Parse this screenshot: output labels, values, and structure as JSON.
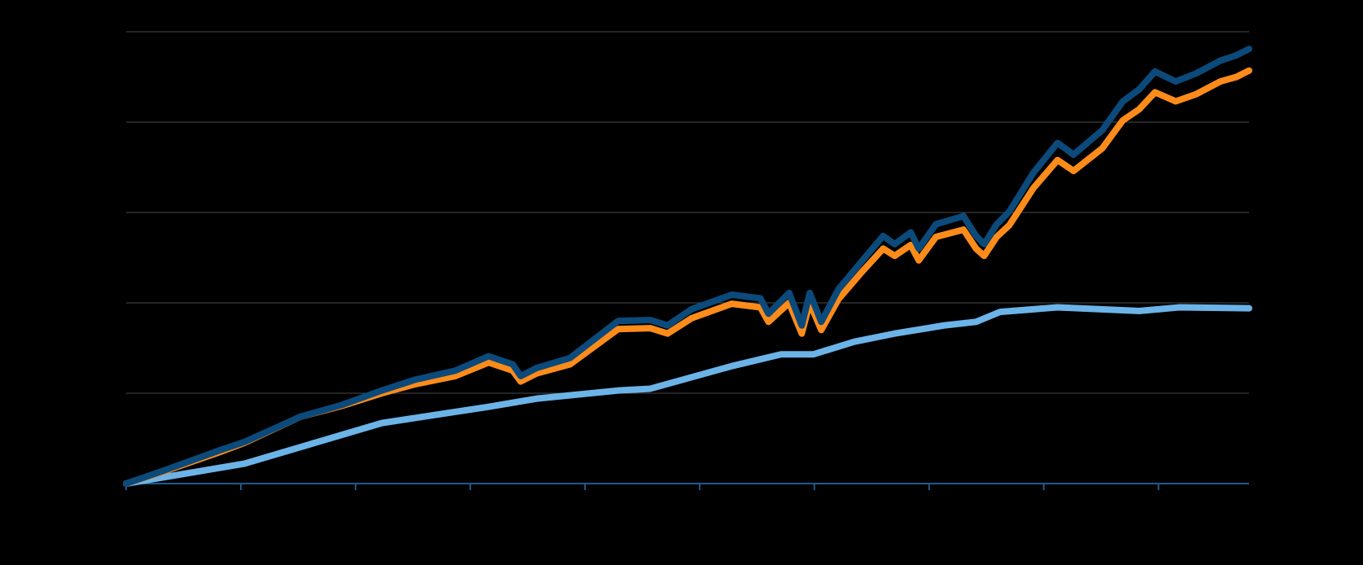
{
  "chart_data": {
    "type": "line",
    "xlim": [
      0,
      9.79
    ],
    "xticks": [
      0,
      1,
      2,
      3,
      4,
      5,
      6,
      7,
      8,
      9
    ],
    "ylim": [
      0,
      5
    ],
    "yticks": [
      0,
      1,
      2,
      3,
      4,
      5
    ],
    "grid": true,
    "series": [
      {
        "color": "#6cb3e8",
        "x": [
          0,
          1.03,
          2.23,
          3.16,
          3.58,
          4.29,
          4.57,
          5.28,
          5.71,
          5.99,
          6.35,
          6.7,
          7.13,
          7.41,
          7.62,
          8.12,
          8.83,
          9.18,
          9.79
        ],
        "values": [
          0,
          0.22,
          0.67,
          0.85,
          0.94,
          1.03,
          1.05,
          1.3,
          1.43,
          1.43,
          1.57,
          1.66,
          1.75,
          1.79,
          1.9,
          1.95,
          1.91,
          1.95,
          1.94
        ]
      },
      {
        "color": "#ff8c1a",
        "x": [
          0,
          0.32,
          0.82,
          1.03,
          1.52,
          1.88,
          2.23,
          2.52,
          2.87,
          3.16,
          3.37,
          3.44,
          3.58,
          3.87,
          4.29,
          4.57,
          4.72,
          4.93,
          5.28,
          5.53,
          5.6,
          5.78,
          5.89,
          5.96,
          6.06,
          6.21,
          6.42,
          6.6,
          6.7,
          6.84,
          6.91,
          7.06,
          7.3,
          7.41,
          7.48,
          7.59,
          7.7,
          7.91,
          8.12,
          8.26,
          8.51,
          8.69,
          8.83,
          8.97,
          9.15,
          9.33,
          9.54,
          9.68,
          9.79
        ],
        "values": [
          0,
          0.13,
          0.35,
          0.45,
          0.74,
          0.86,
          1.0,
          1.1,
          1.19,
          1.34,
          1.25,
          1.13,
          1.22,
          1.32,
          1.71,
          1.72,
          1.66,
          1.83,
          1.99,
          1.95,
          1.79,
          2.0,
          1.66,
          2.0,
          1.7,
          2.04,
          2.35,
          2.6,
          2.52,
          2.64,
          2.47,
          2.73,
          2.81,
          2.6,
          2.52,
          2.73,
          2.86,
          3.27,
          3.58,
          3.46,
          3.71,
          4.02,
          4.14,
          4.33,
          4.23,
          4.31,
          4.45,
          4.5,
          4.57
        ]
      },
      {
        "color": "#0b4a7a",
        "x": [
          0,
          0.32,
          0.82,
          1.03,
          1.52,
          1.88,
          2.23,
          2.52,
          2.87,
          3.16,
          3.37,
          3.44,
          3.58,
          3.87,
          4.29,
          4.57,
          4.72,
          4.93,
          5.28,
          5.53,
          5.6,
          5.78,
          5.89,
          5.96,
          6.06,
          6.21,
          6.42,
          6.6,
          6.7,
          6.84,
          6.91,
          7.06,
          7.3,
          7.41,
          7.48,
          7.59,
          7.7,
          7.91,
          8.12,
          8.26,
          8.51,
          8.69,
          8.83,
          8.97,
          9.15,
          9.33,
          9.54,
          9.68,
          9.79
        ],
        "values": [
          0,
          0.14,
          0.37,
          0.46,
          0.74,
          0.87,
          1.03,
          1.15,
          1.25,
          1.41,
          1.32,
          1.19,
          1.28,
          1.39,
          1.8,
          1.81,
          1.75,
          1.93,
          2.09,
          2.05,
          1.88,
          2.11,
          1.75,
          2.11,
          1.79,
          2.15,
          2.47,
          2.74,
          2.65,
          2.78,
          2.6,
          2.87,
          2.96,
          2.74,
          2.65,
          2.87,
          3.01,
          3.44,
          3.77,
          3.64,
          3.91,
          4.23,
          4.36,
          4.56,
          4.45,
          4.54,
          4.68,
          4.74,
          4.81
        ]
      }
    ]
  }
}
